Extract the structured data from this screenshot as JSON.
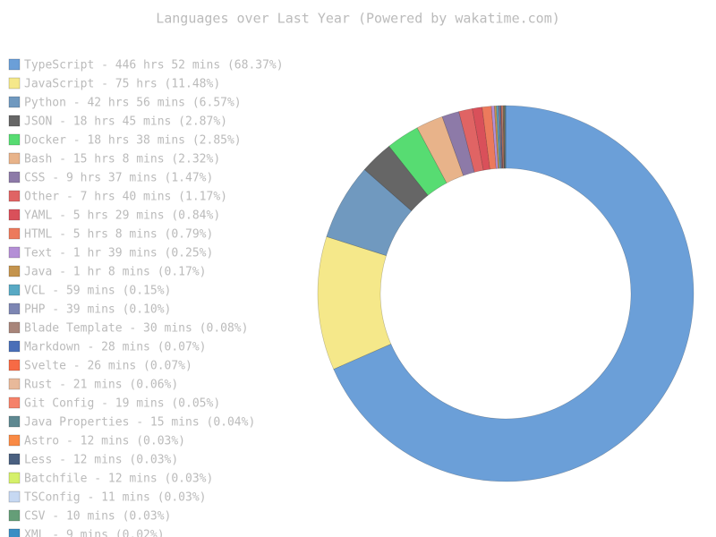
{
  "chart_data": {
    "type": "donut",
    "title": "Languages over Last Year (Powered by wakatime.com)",
    "categories": [
      "TypeScript - 446 hrs 52 mins (68.37%)",
      "JavaScript - 75 hrs (11.48%)",
      "Python - 42 hrs 56 mins (6.57%)",
      "JSON - 18 hrs 45 mins (2.87%)",
      "Docker - 18 hrs 38 mins (2.85%)",
      "Bash - 15 hrs 8 mins (2.32%)",
      "CSS - 9 hrs 37 mins (1.47%)",
      "Other - 7 hrs 40 mins (1.17%)",
      "YAML - 5 hrs 29 mins (0.84%)",
      "HTML - 5 hrs 8 mins (0.79%)",
      "Text - 1 hr 39 mins (0.25%)",
      "Java - 1 hr 8 mins (0.17%)",
      "VCL - 59 mins (0.15%)",
      "PHP - 39 mins (0.10%)",
      "Blade Template - 30 mins (0.08%)",
      "Markdown - 28 mins (0.07%)",
      "Svelte - 26 mins (0.07%)",
      "Rust - 21 mins (0.06%)",
      "Git Config - 19 mins (0.05%)",
      "Java Properties - 15 mins (0.04%)",
      "Astro - 12 mins (0.03%)",
      "Less - 12 mins (0.03%)",
      "Batchfile - 12 mins (0.03%)",
      "TSConfig - 11 mins (0.03%)",
      "CSV - 10 mins (0.03%)",
      "XML - 9 mins (0.02%)"
    ],
    "values": [
      68.37,
      11.48,
      6.57,
      2.87,
      2.85,
      2.32,
      1.47,
      1.17,
      0.84,
      0.79,
      0.25,
      0.17,
      0.15,
      0.1,
      0.08,
      0.07,
      0.07,
      0.06,
      0.05,
      0.04,
      0.03,
      0.03,
      0.03,
      0.03,
      0.03,
      0.02
    ],
    "colors": [
      "#6b9fd8",
      "#f5e88a",
      "#7099bf",
      "#666666",
      "#57dc72",
      "#e8b38a",
      "#8d7aa8",
      "#e06464",
      "#d9505a",
      "#ec7a5c",
      "#b48fd6",
      "#c4944e",
      "#58a9c4",
      "#7d86b3",
      "#a8857a",
      "#4a6fb8",
      "#f76a45",
      "#e8b99a",
      "#f5826a",
      "#5e8891",
      "#f98a45",
      "#4a6080",
      "#d5f06a",
      "#c6d8f2",
      "#659e78",
      "#3a8ec4"
    ]
  }
}
